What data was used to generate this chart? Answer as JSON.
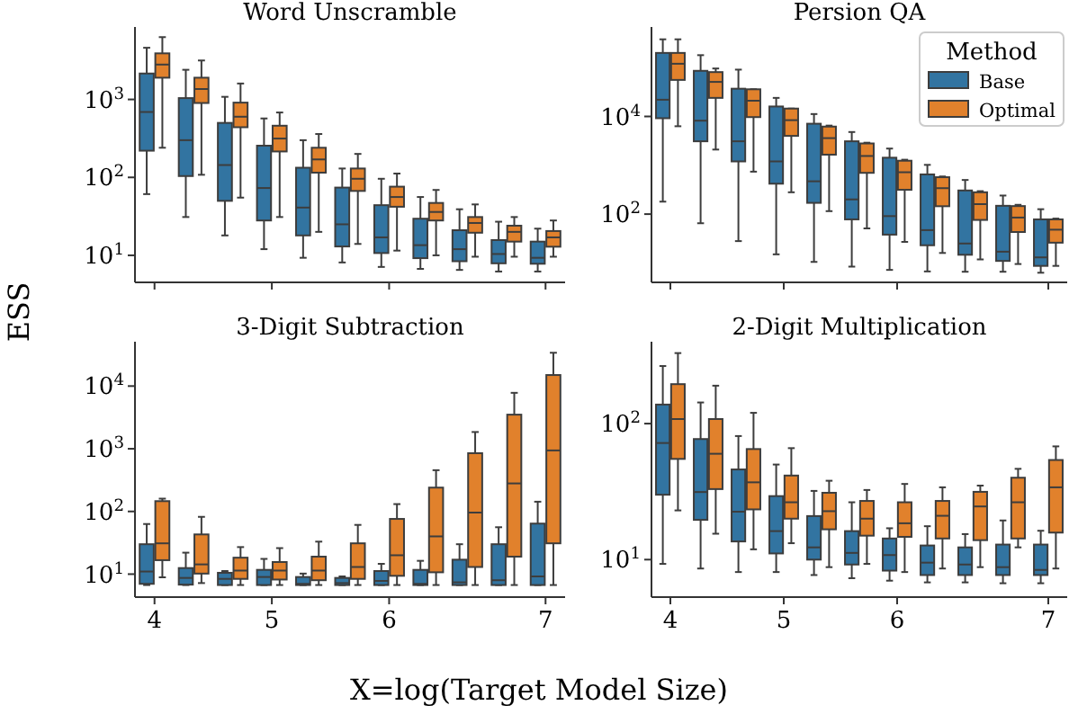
{
  "chart_data": [
    {
      "type": "box",
      "title": "Word Unscramble",
      "ylabel": "ESS",
      "categories": [
        "4",
        null,
        null,
        "5",
        null,
        null,
        "6",
        null,
        null,
        null,
        "7"
      ],
      "log": "y",
      "ylim": [
        4.5,
        8500
      ],
      "yticks": [
        {
          "value": 10,
          "label": "10$^{1}$"
        },
        {
          "value": 100,
          "label": "10$^{2}$"
        },
        {
          "value": 1000,
          "label": "10$^{3}$"
        }
      ],
      "tick_labels": "y",
      "series": [
        {
          "color": "#3274a1",
          "boxes": [
            {
              "low": 61,
              "q1": 220,
              "median": 690,
              "q3": 2150,
              "high": 4600
            },
            {
              "low": 31,
              "q1": 104,
              "median": 300,
              "q3": 1040,
              "high": 2400
            },
            {
              "low": 18,
              "q1": 50,
              "median": 144,
              "q3": 500,
              "high": 1080
            },
            {
              "low": 12,
              "q1": 28,
              "median": 73,
              "q3": 255,
              "high": 570
            },
            {
              "low": 9.3,
              "q1": 18,
              "median": 41,
              "q3": 133,
              "high": 300
            },
            {
              "low": 8.1,
              "q1": 13,
              "median": 25,
              "q3": 74,
              "high": 130
            },
            {
              "low": 7.1,
              "q1": 10.7,
              "median": 17,
              "q3": 44,
              "high": 96
            },
            {
              "low": 6.7,
              "q1": 9.2,
              "median": 13.5,
              "q3": 29.5,
              "high": 56
            },
            {
              "low": 6.5,
              "q1": 8.4,
              "median": 12,
              "q3": 21,
              "high": 39
            },
            {
              "low": 6.2,
              "q1": 7.9,
              "median": 10.4,
              "q3": 15.7,
              "high": 27
            },
            {
              "low": 6.2,
              "q1": 7.8,
              "median": 9.3,
              "q3": 15,
              "high": 22
            }
          ]
        },
        {
          "color": "#e1812c",
          "boxes": [
            {
              "low": 240,
              "q1": 1900,
              "median": 2800,
              "q3": 3900,
              "high": 6300
            },
            {
              "low": 108,
              "q1": 900,
              "median": 1360,
              "q3": 1900,
              "high": 3160
            },
            {
              "low": 55,
              "q1": 440,
              "median": 600,
              "q3": 910,
              "high": 1600
            },
            {
              "low": 31,
              "q1": 215,
              "median": 315,
              "q3": 460,
              "high": 680
            },
            {
              "low": 20,
              "q1": 115,
              "median": 170,
              "q3": 240,
              "high": 360
            },
            {
              "low": 14,
              "q1": 67,
              "median": 96,
              "q3": 130,
              "high": 200
            },
            {
              "low": 11.5,
              "q1": 42,
              "median": 56,
              "q3": 76,
              "high": 112
            },
            {
              "low": 10,
              "q1": 28,
              "median": 36,
              "q3": 47,
              "high": 69
            },
            {
              "low": 9.6,
              "q1": 19.5,
              "median": 26,
              "q3": 31,
              "high": 45
            },
            {
              "low": 9.6,
              "q1": 15,
              "median": 20,
              "q3": 24,
              "high": 31
            },
            {
              "low": 9.6,
              "q1": 12.9,
              "median": 17,
              "q3": 20.5,
              "high": 28
            }
          ]
        }
      ]
    },
    {
      "type": "box",
      "title": "Persion QA",
      "legend": "top right",
      "legend_title": "Method",
      "categories": [
        "4",
        null,
        null,
        "5",
        null,
        null,
        "6",
        null,
        null,
        null,
        "7"
      ],
      "log": "y",
      "ylim": [
        4,
        680000
      ],
      "yticks": [
        {
          "value": 100,
          "label": "10$^{2}$"
        },
        {
          "value": 10000,
          "label": "10$^{4}$"
        }
      ],
      "tick_labels": "y",
      "series": [
        {
          "name": "Base",
          "color": "#3274a1",
          "boxes": [
            {
              "low": 180,
              "q1": 9200,
              "median": 22000,
              "q3": 200000,
              "high": 380000
            },
            {
              "low": 65,
              "q1": 3100,
              "median": 8200,
              "q3": 86000,
              "high": 180000
            },
            {
              "low": 28,
              "q1": 1200,
              "median": 3100,
              "q3": 37000,
              "high": 91000
            },
            {
              "low": 15,
              "q1": 420,
              "median": 1200,
              "q3": 16000,
              "high": 24000
            },
            {
              "low": 10.5,
              "q1": 170,
              "median": 470,
              "q3": 7100,
              "high": 11200
            },
            {
              "low": 8.4,
              "q1": 78,
              "median": 200,
              "q3": 3100,
              "high": 4800
            },
            {
              "low": 7.2,
              "q1": 38,
              "median": 91,
              "q3": 1430,
              "high": 2200
            },
            {
              "low": 6.7,
              "q1": 23,
              "median": 47,
              "q3": 650,
              "high": 1020
            },
            {
              "low": 6.6,
              "q1": 14.7,
              "median": 25,
              "q3": 305,
              "high": 500
            },
            {
              "low": 6.6,
              "q1": 11,
              "median": 17,
              "q3": 148,
              "high": 240
            },
            {
              "low": 6.3,
              "q1": 8.7,
              "median": 13,
              "q3": 78,
              "high": 126
            }
          ]
        },
        {
          "name": "Optimal",
          "color": "#e1812c",
          "boxes": [
            {
              "low": 6300,
              "q1": 56000,
              "median": 120000,
              "q3": 200000,
              "high": 380000
            },
            {
              "low": 2100,
              "q1": 24000,
              "median": 51000,
              "q3": 81000,
              "high": 96000
            },
            {
              "low": 740,
              "q1": 9700,
              "median": 21000,
              "q3": 36000,
              "high": 36000
            },
            {
              "low": 280,
              "q1": 4000,
              "median": 8400,
              "q3": 14500,
              "high": 14500
            },
            {
              "low": 115,
              "q1": 1650,
              "median": 3600,
              "q3": 6200,
              "high": 6500
            },
            {
              "low": 51,
              "q1": 700,
              "median": 1550,
              "q3": 2800,
              "high": 2900
            },
            {
              "low": 27,
              "q1": 315,
              "median": 720,
              "q3": 1240,
              "high": 1300
            },
            {
              "low": 16,
              "q1": 145,
              "median": 340,
              "q3": 570,
              "high": 590
            },
            {
              "low": 11.8,
              "q1": 76,
              "median": 160,
              "q3": 280,
              "high": 295
            },
            {
              "low": 9.5,
              "q1": 43,
              "median": 85,
              "q3": 146,
              "high": 155
            },
            {
              "low": 8.7,
              "q1": 26,
              "median": 48,
              "q3": 78,
              "high": 81
            }
          ]
        }
      ]
    },
    {
      "type": "box",
      "title": "3-Digit Subtraction",
      "xlabel": "X=log(Target Model Size)",
      "categories": [
        "4",
        null,
        null,
        "5",
        null,
        null,
        "6",
        null,
        null,
        null,
        "7"
      ],
      "log": "y",
      "ylim": [
        4.3,
        51000
      ],
      "yticks": [
        {
          "value": 10,
          "label": "10$^{1}$"
        },
        {
          "value": 100,
          "label": "10$^{2}$"
        },
        {
          "value": 1000,
          "label": "10$^{3}$"
        },
        {
          "value": 10000,
          "label": "10$^{4}$"
        }
      ],
      "series": [
        {
          "color": "#3274a1",
          "boxes": [
            {
              "low": 6.7,
              "q1": 7,
              "median": 11,
              "q3": 30,
              "high": 63
            },
            {
              "low": 6.7,
              "q1": 6.8,
              "median": 8.7,
              "q3": 12.5,
              "high": 22
            },
            {
              "low": 6.7,
              "q1": 6.7,
              "median": 8.4,
              "q3": 10.5,
              "high": 11.2
            },
            {
              "low": 6.7,
              "q1": 6.7,
              "median": 9,
              "q3": 11.7,
              "high": 17.5
            },
            {
              "low": 6.7,
              "q1": 6.7,
              "median": 7,
              "q3": 9,
              "high": 10.2
            },
            {
              "low": 6.7,
              "q1": 6.7,
              "median": 7.2,
              "q3": 8.7,
              "high": 9.2
            },
            {
              "low": 6.7,
              "q1": 6.7,
              "median": 7.8,
              "q3": 11.2,
              "high": 14.6
            },
            {
              "low": 6.7,
              "q1": 6.7,
              "median": 7,
              "q3": 11.7,
              "high": 16.3
            },
            {
              "low": 6.7,
              "q1": 6.7,
              "median": 7.4,
              "q3": 17,
              "high": 30
            },
            {
              "low": 6.7,
              "q1": 6.7,
              "median": 8,
              "q3": 30,
              "high": 56
            },
            {
              "low": 6.7,
              "q1": 6.7,
              "median": 9.2,
              "q3": 64,
              "high": 143
            }
          ]
        },
        {
          "color": "#e1812c",
          "boxes": [
            {
              "low": 8.9,
              "q1": 16.7,
              "median": 31,
              "q3": 146,
              "high": 160
            },
            {
              "low": 7.2,
              "q1": 10.2,
              "median": 14.3,
              "q3": 43,
              "high": 82
            },
            {
              "low": 6.7,
              "q1": 8.4,
              "median": 11.4,
              "q3": 18.3,
              "high": 27
            },
            {
              "low": 6.7,
              "q1": 8.2,
              "median": 11.4,
              "q3": 15.6,
              "high": 26
            },
            {
              "low": 6.7,
              "q1": 8,
              "median": 11.4,
              "q3": 19,
              "high": 33
            },
            {
              "low": 6.7,
              "q1": 8.4,
              "median": 13,
              "q3": 31,
              "high": 61
            },
            {
              "low": 6.7,
              "q1": 9.4,
              "median": 20,
              "q3": 76,
              "high": 131
            },
            {
              "low": 6.7,
              "q1": 10.7,
              "median": 40,
              "q3": 240,
              "high": 455
            },
            {
              "low": 6.7,
              "q1": 13,
              "median": 96,
              "q3": 850,
              "high": 1850
            },
            {
              "low": 6.7,
              "q1": 19,
              "median": 280,
              "q3": 3500,
              "high": 7800
            },
            {
              "low": 6.7,
              "q1": 31,
              "median": 940,
              "q3": 15000,
              "high": 34000
            }
          ]
        }
      ]
    },
    {
      "type": "box",
      "title": "2-Digit Multiplication",
      "categories": [
        "4",
        null,
        null,
        "5",
        null,
        null,
        "6",
        null,
        null,
        null,
        "7"
      ],
      "log": "y",
      "ylim": [
        5.3,
        400
      ],
      "yticks": [
        {
          "value": 10,
          "label": "10$^{1}$"
        },
        {
          "value": 100,
          "label": "10$^{2}$"
        }
      ],
      "series": [
        {
          "color": "#3274a1",
          "boxes": [
            {
              "low": 9.3,
              "q1": 30,
              "median": 72,
              "q3": 138,
              "high": 265
            },
            {
              "low": 8.6,
              "q1": 19.6,
              "median": 31.4,
              "q3": 77,
              "high": 143
            },
            {
              "low": 8.1,
              "q1": 13.6,
              "median": 22.5,
              "q3": 46,
              "high": 81
            },
            {
              "low": 8.1,
              "q1": 11.1,
              "median": 16.2,
              "q3": 29.3,
              "high": 50
            },
            {
              "low": 7.7,
              "q1": 10,
              "median": 12.3,
              "q3": 20.9,
              "high": 32
            },
            {
              "low": 7.3,
              "q1": 9.2,
              "median": 11.2,
              "q3": 16.2,
              "high": 26.4
            },
            {
              "low": 7,
              "q1": 8.3,
              "median": 10.8,
              "q3": 14.3,
              "high": 17
            },
            {
              "low": 6.8,
              "q1": 7.7,
              "median": 9.5,
              "q3": 12.7,
              "high": 17.6
            },
            {
              "low": 6.8,
              "q1": 7.7,
              "median": 9.2,
              "q3": 12.3,
              "high": 15.4
            },
            {
              "low": 6.7,
              "q1": 7.7,
              "median": 8.8,
              "q3": 12.9,
              "high": 19.4
            },
            {
              "low": 6.7,
              "q1": 7.7,
              "median": 8.4,
              "q3": 12.9,
              "high": 16.3
            }
          ]
        },
        {
          "color": "#e1812c",
          "boxes": [
            {
              "low": 23,
              "q1": 55,
              "median": 108,
              "q3": 195,
              "high": 330
            },
            {
              "low": 15.5,
              "q1": 33,
              "median": 60,
              "q3": 108,
              "high": 190
            },
            {
              "low": 11.9,
              "q1": 23.4,
              "median": 37,
              "q3": 65,
              "high": 120
            },
            {
              "low": 13.2,
              "q1": 20,
              "median": 26.4,
              "q3": 41.5,
              "high": 66
            },
            {
              "low": 8.8,
              "q1": 16.7,
              "median": 22.7,
              "q3": 31,
              "high": 38
            },
            {
              "low": 9.3,
              "q1": 15,
              "median": 20,
              "q3": 27,
              "high": 32.5
            },
            {
              "low": 8.1,
              "q1": 14.7,
              "median": 18.5,
              "q3": 26.4,
              "high": 36
            },
            {
              "low": 8.6,
              "q1": 14.3,
              "median": 21,
              "q3": 27,
              "high": 34
            },
            {
              "low": 8.8,
              "q1": 13.9,
              "median": 24.6,
              "q3": 31.5,
              "high": 35
            },
            {
              "low": 12.3,
              "q1": 14.3,
              "median": 26.4,
              "q3": 40,
              "high": 46.5
            },
            {
              "low": 8.6,
              "q1": 15.8,
              "median": 34,
              "q3": 54,
              "high": 68
            }
          ]
        }
      ]
    }
  ]
}
